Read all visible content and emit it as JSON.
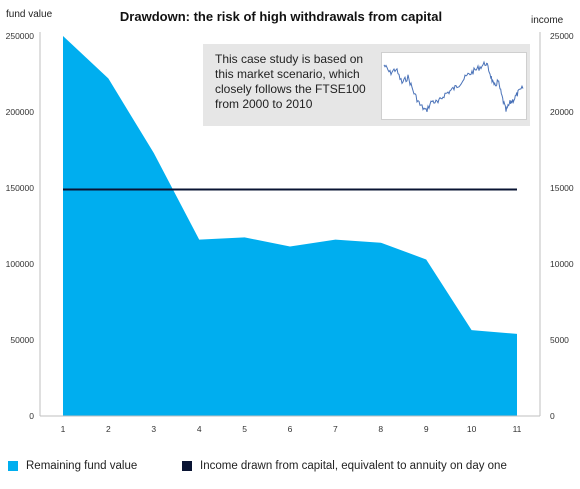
{
  "chart_data": {
    "type": "area",
    "title": "Drawdown: the risk of high withdrawals from capital",
    "ylabel_left": "fund value",
    "ylabel_right": "income",
    "x": [
      1,
      2,
      3,
      4,
      5,
      6,
      7,
      8,
      9,
      10,
      11
    ],
    "ylim_left": [
      0,
      250000
    ],
    "yticks_left": [
      0,
      50000,
      100000,
      150000,
      200000,
      250000
    ],
    "ylim_right": [
      0,
      25000
    ],
    "yticks_right": [
      0,
      5000,
      10000,
      15000,
      20000,
      25000
    ],
    "series": [
      {
        "name": "Remaining fund value",
        "type": "area",
        "axis": "left",
        "color": "#00aeef",
        "values": [
          250000,
          222000,
          173000,
          116000,
          117500,
          111500,
          116000,
          114000,
          103000,
          56500,
          54000
        ]
      },
      {
        "name": "Income drawn from capital, equivalent to annuity on day one",
        "type": "line",
        "axis": "right",
        "color": "#0a1433",
        "values": [
          14900,
          14900,
          14900,
          14900,
          14900,
          14900,
          14900,
          14900,
          14900,
          14900,
          14900
        ]
      }
    ],
    "legend_position": "bottom",
    "grid": false
  },
  "inset": {
    "text": "This case study is based on this market scenario, which closely follows the FTSE100 from 2000 to 2010",
    "line_color": "#4a72b8"
  }
}
